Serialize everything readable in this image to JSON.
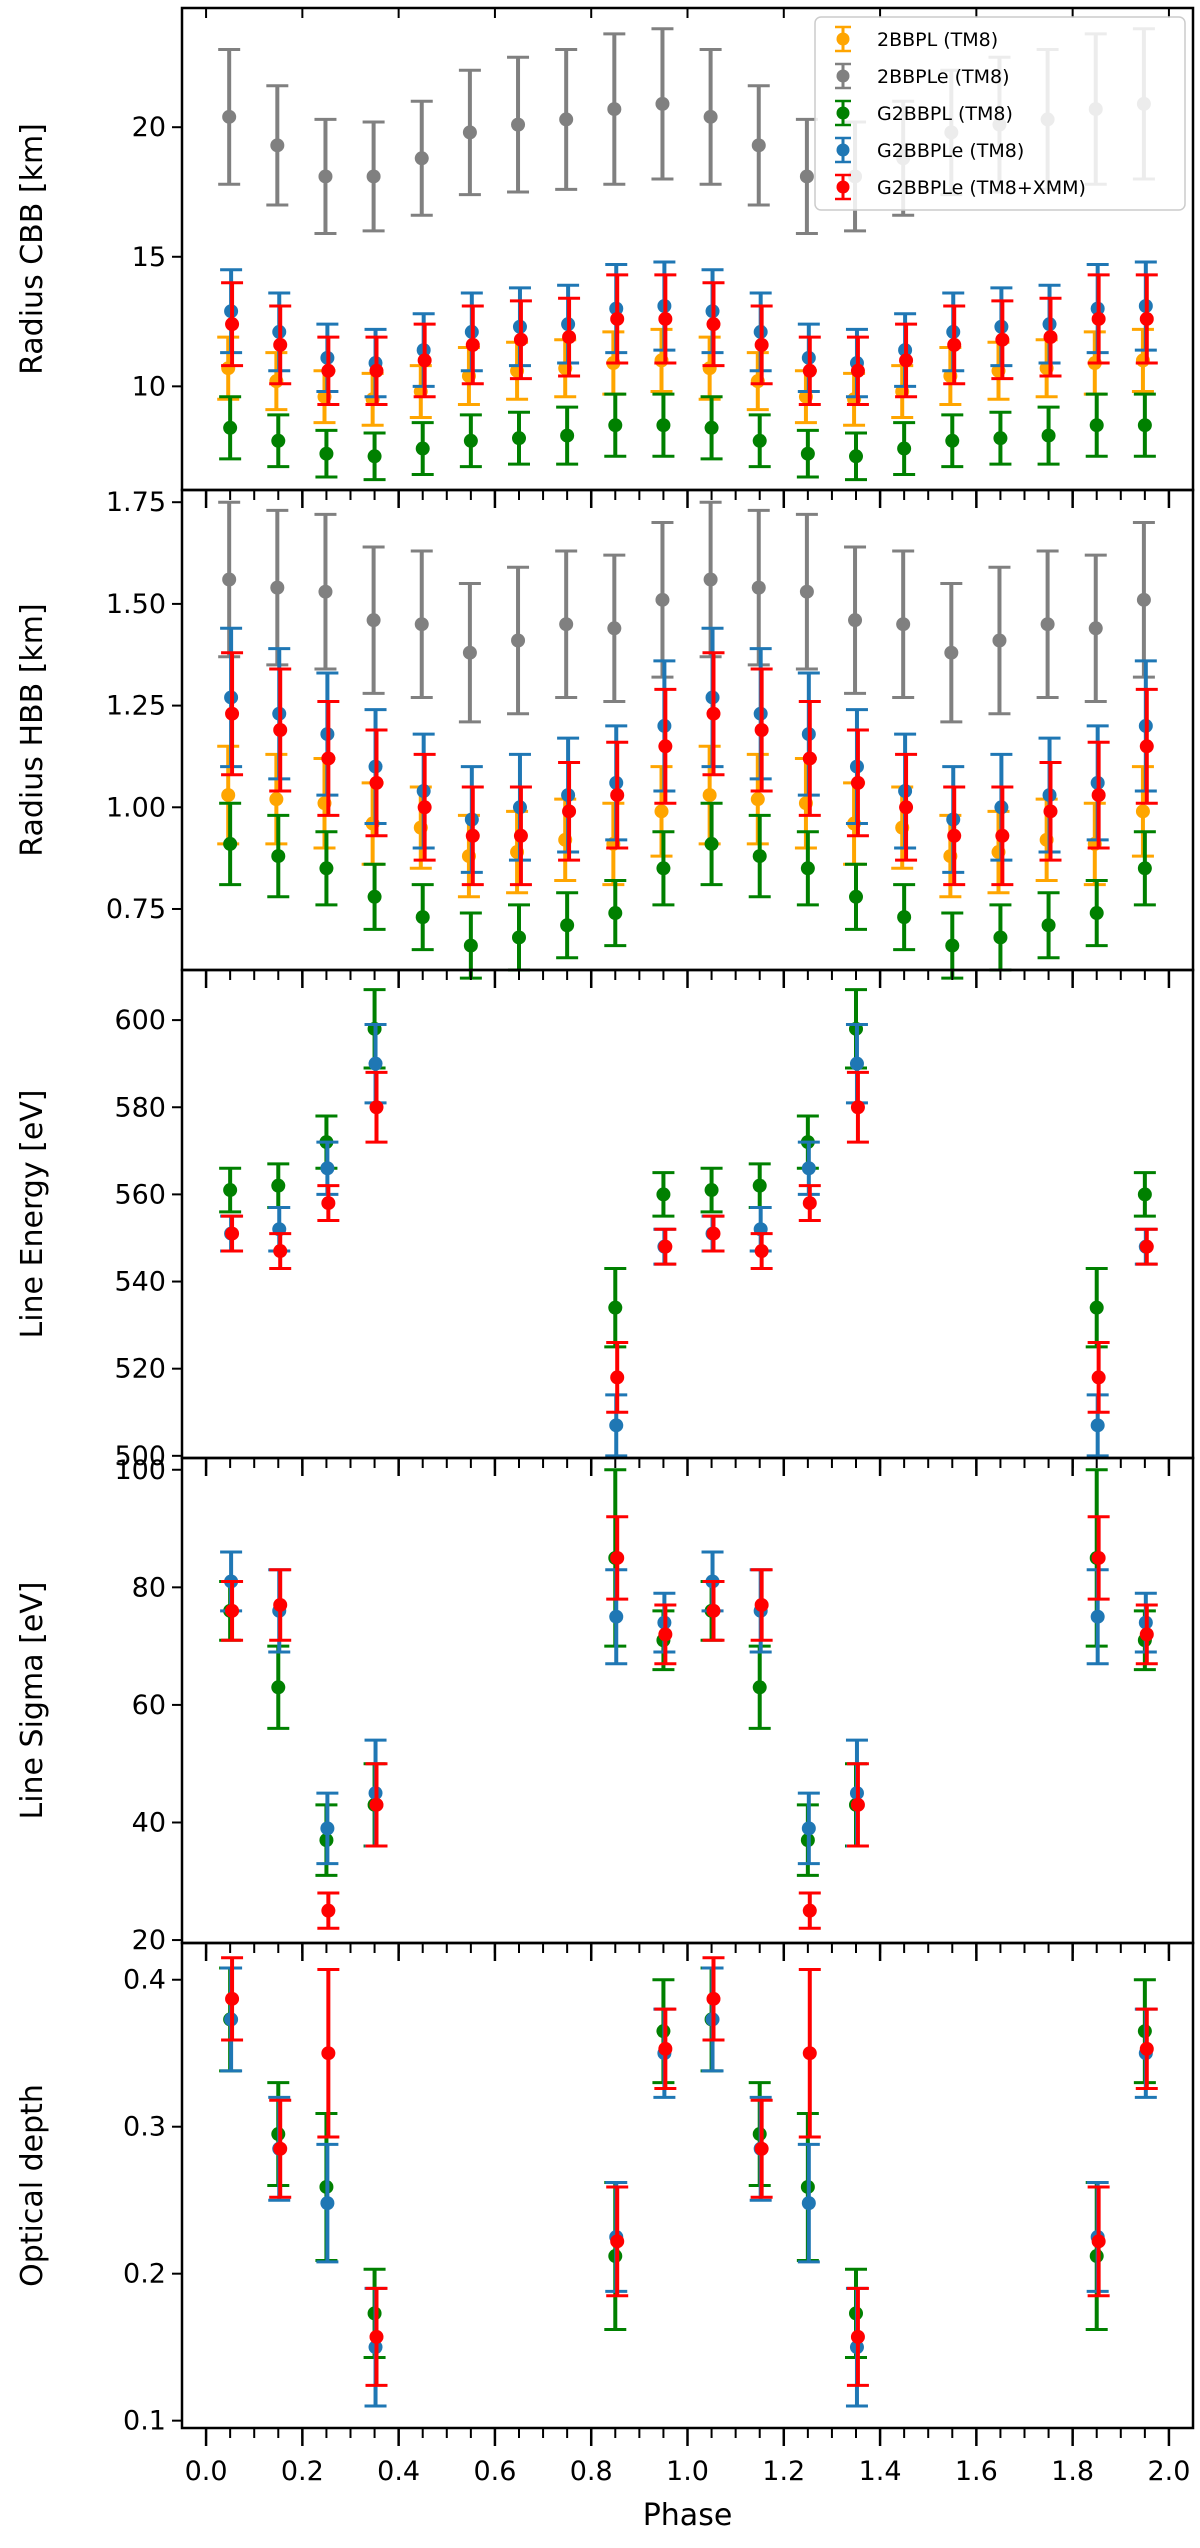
{
  "chart_data": {
    "type": "scatter",
    "xlabel": "Phase",
    "xlim": [
      -0.05,
      2.05
    ],
    "xticks": [
      "0.0",
      "0.2",
      "0.4",
      "0.6",
      "0.8",
      "1.0",
      "1.2",
      "1.4",
      "1.6",
      "1.8",
      "2.0"
    ],
    "phases": [
      0.05,
      0.15,
      0.25,
      0.35,
      0.45,
      0.55,
      0.65,
      0.75,
      0.85,
      0.95,
      1.05,
      1.15,
      1.25,
      1.35,
      1.45,
      1.55,
      1.65,
      1.75,
      1.85,
      1.95
    ],
    "colors": {
      "2BBPL (TM8)": "#ffa500",
      "2BBPLe (TM8)": "#808080",
      "G2BBPL (TM8)": "#008000",
      "G2BBPLe (TM8)": "#1f77b4",
      "G2BBPLe (TM8+XMM)": "#ff0000"
    },
    "legend": {
      "position": "upper right",
      "entries": [
        "2BBPL (TM8)",
        "2BBPLe (TM8)",
        "G2BBPL (TM8)",
        "G2BBPLe (TM8)",
        "G2BBPLe (TM8+XMM)"
      ]
    },
    "panels": [
      {
        "ylabel": "Radius CBB [km]",
        "ylim": [
          6.0,
          24.6
        ],
        "yticks": [
          "10",
          "15",
          "20"
        ],
        "legend": true,
        "series": [
          {
            "name": "2BBPL (TM8)",
            "y": [
              10.7,
              10.2,
              9.6,
              9.5,
              9.8,
              10.4,
              10.6,
              10.7,
              10.9,
              11.0,
              10.7,
              10.2,
              9.6,
              9.5,
              9.8,
              10.4,
              10.6,
              10.7,
              10.9,
              11.0
            ],
            "err": [
              1.2,
              1.1,
              1.0,
              1.0,
              1.0,
              1.1,
              1.1,
              1.1,
              1.2,
              1.2,
              1.2,
              1.1,
              1.0,
              1.0,
              1.0,
              1.1,
              1.1,
              1.1,
              1.2,
              1.2
            ]
          },
          {
            "name": "2BBPLe (TM8)",
            "y": [
              20.4,
              19.3,
              18.1,
              18.1,
              18.8,
              19.8,
              20.1,
              20.3,
              20.7,
              20.9,
              20.4,
              19.3,
              18.1,
              18.1,
              18.8,
              19.8,
              20.1,
              20.3,
              20.7,
              20.9
            ],
            "err": [
              2.6,
              2.3,
              2.2,
              2.1,
              2.2,
              2.4,
              2.6,
              2.7,
              2.9,
              2.9,
              2.6,
              2.3,
              2.2,
              2.1,
              2.2,
              2.4,
              2.6,
              2.7,
              2.9,
              2.9
            ]
          },
          {
            "name": "G2BBPL (TM8)",
            "y": [
              8.4,
              7.9,
              7.4,
              7.3,
              7.6,
              7.9,
              8.0,
              8.1,
              8.5,
              8.5,
              8.4,
              7.9,
              7.4,
              7.3,
              7.6,
              7.9,
              8.0,
              8.1,
              8.5,
              8.5
            ],
            "err": [
              1.2,
              1.0,
              0.9,
              0.9,
              1.0,
              1.0,
              1.0,
              1.1,
              1.2,
              1.2,
              1.2,
              1.0,
              0.9,
              0.9,
              1.0,
              1.0,
              1.0,
              1.1,
              1.2,
              1.2
            ]
          },
          {
            "name": "G2BBPLe (TM8)",
            "y": [
              12.9,
              12.1,
              11.1,
              10.9,
              11.4,
              12.1,
              12.3,
              12.4,
              13.0,
              13.1,
              12.9,
              12.1,
              11.1,
              10.9,
              11.4,
              12.1,
              12.3,
              12.4,
              13.0,
              13.1
            ],
            "err": [
              1.6,
              1.5,
              1.3,
              1.3,
              1.4,
              1.5,
              1.5,
              1.5,
              1.7,
              1.7,
              1.6,
              1.5,
              1.3,
              1.3,
              1.4,
              1.5,
              1.5,
              1.5,
              1.7,
              1.7
            ]
          },
          {
            "name": "G2BBPLe (TM8+XMM)",
            "y": [
              12.4,
              11.6,
              10.6,
              10.6,
              11.0,
              11.6,
              11.8,
              11.9,
              12.6,
              12.6,
              12.4,
              11.6,
              10.6,
              10.6,
              11.0,
              11.6,
              11.8,
              11.9,
              12.6,
              12.6
            ],
            "err": [
              1.6,
              1.5,
              1.3,
              1.3,
              1.4,
              1.5,
              1.5,
              1.5,
              1.7,
              1.7,
              1.6,
              1.5,
              1.3,
              1.3,
              1.4,
              1.5,
              1.5,
              1.5,
              1.7,
              1.7
            ]
          }
        ]
      },
      {
        "ylabel": "Radius HBB [km]",
        "ylim": [
          0.6,
          1.78
        ],
        "yticks": [
          "0.75",
          "1.00",
          "1.25",
          "1.50",
          "1.75"
        ],
        "legend": false,
        "series": [
          {
            "name": "2BBPL (TM8)",
            "y": [
              1.03,
              1.02,
              1.01,
              0.96,
              0.95,
              0.88,
              0.89,
              0.92,
              0.91,
              0.99,
              1.03,
              1.02,
              1.01,
              0.96,
              0.95,
              0.88,
              0.89,
              0.92,
              0.91,
              0.99
            ],
            "err": [
              0.12,
              0.11,
              0.11,
              0.1,
              0.1,
              0.1,
              0.1,
              0.1,
              0.1,
              0.11,
              0.12,
              0.11,
              0.11,
              0.1,
              0.1,
              0.1,
              0.1,
              0.1,
              0.1,
              0.11
            ]
          },
          {
            "name": "2BBPLe (TM8)",
            "y": [
              1.56,
              1.54,
              1.53,
              1.46,
              1.45,
              1.38,
              1.41,
              1.45,
              1.44,
              1.51,
              1.56,
              1.54,
              1.53,
              1.46,
              1.45,
              1.38,
              1.41,
              1.45,
              1.44,
              1.51
            ],
            "err": [
              0.19,
              0.19,
              0.19,
              0.18,
              0.18,
              0.17,
              0.18,
              0.18,
              0.18,
              0.19,
              0.19,
              0.19,
              0.19,
              0.18,
              0.18,
              0.17,
              0.18,
              0.18,
              0.18,
              0.19
            ]
          },
          {
            "name": "G2BBPL (TM8)",
            "y": [
              0.91,
              0.88,
              0.85,
              0.78,
              0.73,
              0.66,
              0.68,
              0.71,
              0.74,
              0.85,
              0.91,
              0.88,
              0.85,
              0.78,
              0.73,
              0.66,
              0.68,
              0.71,
              0.74,
              0.85
            ],
            "err": [
              0.1,
              0.1,
              0.09,
              0.08,
              0.08,
              0.08,
              0.08,
              0.08,
              0.08,
              0.09,
              0.1,
              0.1,
              0.09,
              0.08,
              0.08,
              0.08,
              0.08,
              0.08,
              0.08,
              0.09
            ]
          },
          {
            "name": "G2BBPLe (TM8)",
            "y": [
              1.27,
              1.23,
              1.18,
              1.1,
              1.04,
              0.97,
              1.0,
              1.03,
              1.06,
              1.2,
              1.27,
              1.23,
              1.18,
              1.1,
              1.04,
              0.97,
              1.0,
              1.03,
              1.06,
              1.2
            ],
            "err": [
              0.17,
              0.16,
              0.15,
              0.14,
              0.14,
              0.13,
              0.13,
              0.14,
              0.14,
              0.16,
              0.17,
              0.16,
              0.15,
              0.14,
              0.14,
              0.13,
              0.13,
              0.14,
              0.14,
              0.16
            ]
          },
          {
            "name": "G2BBPLe (TM8+XMM)",
            "y": [
              1.23,
              1.19,
              1.12,
              1.06,
              1.0,
              0.93,
              0.93,
              0.99,
              1.03,
              1.15,
              1.23,
              1.19,
              1.12,
              1.06,
              1.0,
              0.93,
              0.93,
              0.99,
              1.03,
              1.15
            ],
            "err": [
              0.15,
              0.15,
              0.14,
              0.13,
              0.13,
              0.12,
              0.12,
              0.12,
              0.13,
              0.14,
              0.15,
              0.15,
              0.14,
              0.13,
              0.13,
              0.12,
              0.12,
              0.12,
              0.13,
              0.14
            ]
          }
        ]
      },
      {
        "ylabel": "Line Energy [eV]",
        "ylim": [
          499.5,
          611.5
        ],
        "yticks": [
          "500",
          "520",
          "540",
          "560",
          "580",
          "600"
        ],
        "legend": false,
        "series": [
          {
            "name": "G2BBPL (TM8)",
            "y": [
              561,
              562,
              572,
              598,
              null,
              null,
              null,
              null,
              534,
              560,
              561,
              562,
              572,
              598,
              null,
              null,
              null,
              null,
              534,
              560
            ],
            "err": [
              5,
              5,
              6,
              9,
              null,
              null,
              null,
              null,
              9,
              5,
              5,
              5,
              6,
              9,
              null,
              null,
              null,
              null,
              9,
              5
            ]
          },
          {
            "name": "G2BBPLe (TM8)",
            "y": [
              551,
              552,
              566,
              590,
              null,
              null,
              null,
              null,
              507,
              548,
              551,
              552,
              566,
              590,
              null,
              null,
              null,
              null,
              507,
              548
            ],
            "err": [
              4,
              5,
              6,
              9,
              null,
              null,
              null,
              null,
              7,
              4,
              4,
              5,
              6,
              9,
              null,
              null,
              null,
              null,
              7,
              4
            ]
          },
          {
            "name": "G2BBPLe (TM8+XMM)",
            "y": [
              551,
              547,
              558,
              580,
              null,
              null,
              null,
              null,
              518,
              548,
              551,
              547,
              558,
              580,
              null,
              null,
              null,
              null,
              518,
              548
            ],
            "err": [
              4,
              4,
              4,
              8,
              null,
              null,
              null,
              null,
              8,
              4,
              4,
              4,
              4,
              8,
              null,
              null,
              null,
              null,
              8,
              4
            ]
          }
        ]
      },
      {
        "ylabel": "Line Sigma [eV]",
        "ylim": [
          19.5,
          102
        ],
        "yticks": [
          "20",
          "40",
          "60",
          "80",
          "100"
        ],
        "legend": false,
        "series": [
          {
            "name": "G2BBPL (TM8)",
            "y": [
              76,
              63,
              37,
              43,
              null,
              null,
              null,
              null,
              85,
              71,
              76,
              63,
              37,
              43,
              null,
              null,
              null,
              null,
              85,
              71
            ],
            "err": [
              5,
              7,
              6,
              7,
              null,
              null,
              null,
              null,
              15,
              5,
              5,
              7,
              6,
              7,
              null,
              null,
              null,
              null,
              15,
              5
            ]
          },
          {
            "name": "G2BBPLe (TM8)",
            "y": [
              81,
              76,
              39,
              45,
              null,
              null,
              null,
              null,
              75,
              74,
              81,
              76,
              39,
              45,
              null,
              null,
              null,
              null,
              75,
              74
            ],
            "err": [
              5,
              7,
              6,
              9,
              null,
              null,
              null,
              null,
              8,
              5,
              5,
              7,
              6,
              9,
              null,
              null,
              null,
              null,
              8,
              5
            ]
          },
          {
            "name": "G2BBPLe (TM8+XMM)",
            "y": [
              76,
              77,
              25,
              43,
              null,
              null,
              null,
              null,
              85,
              72,
              76,
              77,
              25,
              43,
              null,
              null,
              null,
              null,
              85,
              72
            ],
            "err": [
              5,
              6,
              3,
              7,
              null,
              null,
              null,
              null,
              7,
              5,
              5,
              6,
              3,
              7,
              null,
              null,
              null,
              null,
              7,
              5
            ]
          }
        ]
      },
      {
        "ylabel": "Optical depth",
        "ylim": [
          0.095,
          0.425
        ],
        "yticks": [
          "0.1",
          "0.2",
          "0.3",
          "0.4"
        ],
        "legend": false,
        "series": [
          {
            "name": "G2BBPL (TM8)",
            "y": [
              0.373,
              0.295,
              0.259,
              0.173,
              null,
              null,
              null,
              null,
              0.212,
              0.365,
              0.373,
              0.295,
              0.259,
              0.173,
              null,
              null,
              null,
              null,
              0.212,
              0.365
            ],
            "err": [
              0.035,
              0.035,
              0.05,
              0.03,
              null,
              null,
              null,
              null,
              0.05,
              0.035,
              0.035,
              0.035,
              0.05,
              0.03,
              null,
              null,
              null,
              null,
              0.05,
              0.035
            ]
          },
          {
            "name": "G2BBPLe (TM8)",
            "y": [
              0.373,
              0.285,
              0.248,
              0.15,
              null,
              null,
              null,
              null,
              0.225,
              0.35,
              0.373,
              0.285,
              0.248,
              0.15,
              null,
              null,
              null,
              null,
              0.225,
              0.35
            ],
            "err": [
              0.035,
              0.035,
              0.04,
              0.04,
              null,
              null,
              null,
              null,
              0.037,
              0.03,
              0.035,
              0.035,
              0.04,
              0.04,
              null,
              null,
              null,
              null,
              0.037,
              0.03
            ]
          },
          {
            "name": "G2BBPLe (TM8+XMM)",
            "y": [
              0.387,
              0.285,
              0.35,
              0.157,
              null,
              null,
              null,
              null,
              0.222,
              0.353,
              0.387,
              0.285,
              0.35,
              0.157,
              null,
              null,
              null,
              null,
              0.222,
              0.353
            ],
            "err": [
              0.028,
              0.033,
              0.057,
              0.033,
              null,
              null,
              null,
              null,
              0.037,
              0.027,
              0.028,
              0.033,
              0.057,
              0.033,
              null,
              null,
              null,
              null,
              0.037,
              0.027
            ]
          }
        ]
      }
    ]
  }
}
